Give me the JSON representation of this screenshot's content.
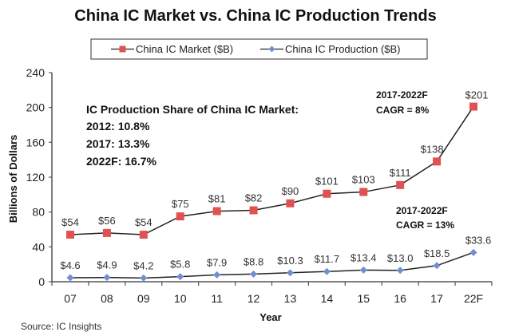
{
  "chart_data": {
    "type": "line",
    "title": "China IC Market vs. China IC Production Trends",
    "xlabel": "Year",
    "ylabel": "Billions of Dollars",
    "ylim": [
      0,
      240
    ],
    "yticks": [
      0,
      40,
      80,
      120,
      160,
      200,
      240
    ],
    "ytick_labels": [
      "0",
      "40",
      "80",
      "120",
      "160",
      "200",
      "240"
    ],
    "categories": [
      "07",
      "08",
      "09",
      "10",
      "11",
      "12",
      "13",
      "14",
      "15",
      "16",
      "17",
      "22F"
    ],
    "grid": false,
    "legend_position": "top-center",
    "series": [
      {
        "name": "China IC Market ($B)",
        "marker": "square",
        "color": "#e05252",
        "values": [
          54,
          56,
          54,
          75,
          81,
          82,
          90,
          101,
          103,
          111,
          138,
          201
        ],
        "labels": [
          "$54",
          "$56",
          "$54",
          "$75",
          "$81",
          "$82",
          "$90",
          "$101",
          "$103",
          "$111",
          "$138",
          "$201"
        ]
      },
      {
        "name": "China IC Production ($B)",
        "marker": "diamond",
        "color": "#6f8fcf",
        "values": [
          4.6,
          4.9,
          4.2,
          5.8,
          7.9,
          8.8,
          10.3,
          11.7,
          13.4,
          13.0,
          18.5,
          33.6
        ],
        "labels": [
          "$4.6",
          "$4.9",
          "$4.2",
          "$5.8",
          "$7.9",
          "$8.8",
          "$10.3",
          "$11.7",
          "$13.4",
          "$13.0",
          "$18.5",
          "$33.6"
        ]
      }
    ],
    "annotations": {
      "share_title": "IC Production Share of China IC Market:",
      "share_lines": [
        "2012: 10.8%",
        "2017: 13.3%",
        "2022F: 16.7%"
      ],
      "market_cagr_period": "2017-2022F",
      "market_cagr": "CAGR = 8%",
      "production_cagr_period": "2017-2022F",
      "production_cagr": "CAGR = 13%"
    },
    "source": "Source: IC Insights"
  },
  "colors": {
    "line": "#222222",
    "axis": "#555555"
  }
}
